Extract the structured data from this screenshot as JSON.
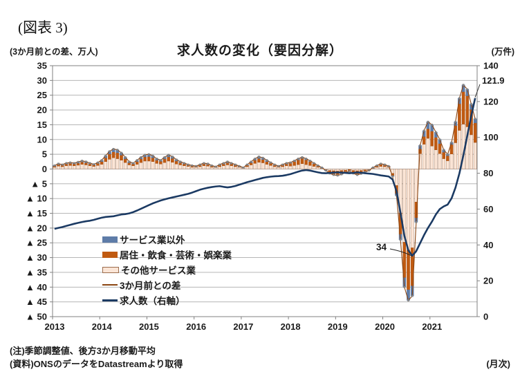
{
  "header": {
    "figure_label": "(図表 3)",
    "title": "求人数の変化（要因分解）",
    "left_axis_caption": "(3か月前との差、万人)",
    "right_axis_caption": "(万件)"
  },
  "footer": {
    "note1": "(注)季節調整値、後方3か月移動平均",
    "note2": "(資料)ONSのデータをDatastreamより取得",
    "frequency": "(月次)"
  },
  "chart_data": {
    "type": "combo: stacked monthly bars (left axis) + lines (left/right axis)",
    "title": "求人数の変化（要因分解）",
    "grid": "horizontal gridlines every 5 left-axis units",
    "legend_position": "inside plot, lower left",
    "years": [
      "2013",
      "2014",
      "2015",
      "2016",
      "2017",
      "2018",
      "2019",
      "2020",
      "2021"
    ],
    "left_axis": {
      "caption": "(3か月前との差、万人)",
      "min": -50,
      "max": 35,
      "step": 5,
      "tick_labels": [
        "35",
        "30",
        "25",
        "20",
        "15",
        "10",
        "5",
        "0",
        "▲ 5",
        "▲ 10",
        "▲ 15",
        "▲ 20",
        "▲ 25",
        "▲ 30",
        "▲ 35",
        "▲ 40",
        "▲ 45",
        "▲ 50"
      ]
    },
    "right_axis": {
      "caption": "(万件)",
      "min": 0,
      "max": 140,
      "step": 20,
      "tick_labels": [
        "140",
        "120",
        "100",
        "80",
        "60",
        "40",
        "20",
        "0"
      ]
    },
    "legend": [
      {
        "label": "サービス業以外",
        "type": "bar",
        "color": "#5E7CA8"
      },
      {
        "label": "居住・飲食・芸術・娯楽業",
        "type": "bar",
        "color": "#C05A11"
      },
      {
        "label": "その他サービス業",
        "type": "bar",
        "color": "#FBE5D6"
      },
      {
        "label": "3か月前との差",
        "type": "line",
        "color": "#8A4410"
      },
      {
        "label": "求人数（右軸）",
        "type": "line",
        "color": "#1B3A63"
      }
    ],
    "annotations": {
      "trough": {
        "text": "34",
        "series": "求人数（右軸）",
        "month": "2020-08"
      },
      "latest": {
        "text": "121.9",
        "series": "求人数（右軸）",
        "month": "2021-12"
      }
    },
    "months_start": "2013-01",
    "months_end": "2021-12",
    "series": {
      "non_services": [
        0.2,
        0.3,
        0.2,
        0.3,
        0.3,
        0.3,
        0.4,
        0.4,
        0.4,
        0.3,
        0.2,
        0.3,
        0.5,
        0.7,
        0.9,
        1.0,
        1.0,
        0.8,
        0.6,
        0.4,
        0.3,
        0.5,
        0.6,
        0.7,
        0.8,
        0.7,
        0.5,
        0.4,
        0.6,
        0.7,
        0.6,
        0.5,
        0.4,
        0.3,
        0.2,
        0.2,
        0.1,
        0.2,
        0.3,
        0.3,
        0.2,
        0.1,
        0.2,
        0.3,
        0.4,
        0.3,
        0.2,
        0.1,
        0.1,
        0.2,
        0.4,
        0.5,
        0.6,
        0.6,
        0.5,
        0.3,
        0.2,
        0.1,
        0.2,
        0.3,
        0.2,
        0.3,
        0.4,
        0.4,
        0.4,
        0.3,
        0.2,
        0.1,
        0.1,
        -0.1,
        -0.1,
        -0.2,
        -0.2,
        -0.2,
        -0.1,
        -0.1,
        -0.1,
        -0.2,
        -0.2,
        -0.1,
        0.0,
        0.1,
        0.1,
        0.2,
        0.2,
        0.1,
        -0.2,
        -0.7,
        -1.9,
        -3.2,
        -3.6,
        -3.4,
        -1.4,
        1.2,
        2.0,
        2.4,
        2.2,
        1.8,
        1.4,
        0.8,
        0.5,
        0.7,
        1.3,
        1.9,
        2.3,
        2.2,
        1.8,
        1.4
      ],
      "accommodation_food_arts": [
        0.4,
        0.5,
        0.5,
        0.6,
        0.7,
        0.6,
        0.7,
        0.8,
        0.7,
        0.6,
        0.5,
        0.7,
        0.9,
        1.3,
        1.8,
        2.0,
        2.0,
        1.7,
        1.2,
        0.7,
        0.6,
        0.9,
        1.2,
        1.4,
        1.5,
        1.3,
        1.1,
        0.9,
        1.2,
        1.4,
        1.3,
        1.0,
        0.7,
        0.6,
        0.4,
        0.4,
        0.3,
        0.5,
        0.6,
        0.5,
        0.4,
        0.2,
        0.5,
        0.6,
        0.7,
        0.6,
        0.5,
        0.3,
        0.1,
        0.5,
        0.7,
        1.1,
        1.3,
        1.1,
        0.9,
        0.7,
        0.5,
        0.3,
        0.5,
        0.6,
        1.0,
        1.3,
        1.6,
        1.8,
        1.6,
        1.3,
        0.9,
        0.5,
        0.2,
        -0.2,
        -0.9,
        -1.2,
        -1.3,
        -1.1,
        -0.7,
        -0.5,
        -0.9,
        -1.2,
        -0.9,
        -0.6,
        -0.3,
        0.2,
        0.5,
        0.7,
        0.5,
        0.3,
        -0.8,
        -2.7,
        -7.2,
        -12.0,
        -13.4,
        -12.9,
        -5.4,
        1.6,
        2.6,
        3.2,
        5.0,
        4.2,
        3.4,
        2.2,
        1.7,
        3.2,
        5.8,
        9.0,
        11.0,
        10.5,
        8.6,
        6.6
      ],
      "other_services": [
        0.6,
        1.0,
        0.8,
        1.1,
        1.2,
        1.1,
        1.3,
        1.6,
        1.4,
        1.1,
        0.9,
        1.2,
        1.6,
        2.5,
        3.3,
        3.8,
        3.5,
        3.0,
        2.2,
        1.4,
        1.1,
        1.6,
        2.2,
        2.7,
        2.7,
        2.5,
        1.9,
        1.7,
        2.2,
        2.7,
        2.3,
        1.7,
        1.4,
        1.1,
        0.9,
        0.6,
        0.6,
        0.8,
        1.1,
        1.0,
        0.6,
        0.5,
        0.8,
        1.1,
        1.4,
        1.1,
        0.8,
        0.6,
        0.3,
        0.8,
        1.4,
        1.9,
        2.3,
        2.1,
        1.6,
        1.2,
        0.8,
        0.6,
        0.8,
        1.1,
        1.0,
        1.2,
        1.5,
        1.8,
        1.5,
        1.2,
        0.9,
        0.6,
        0.2,
        -0.2,
        -0.5,
        -0.6,
        -0.7,
        -0.5,
        -0.4,
        -0.2,
        -0.5,
        -0.6,
        -0.5,
        -0.3,
        -0.2,
        0.2,
        0.6,
        0.9,
        0.8,
        0.6,
        -1.5,
        -5.6,
        -14.9,
        -24.8,
        -27.5,
        -26.7,
        -11.2,
        5.2,
        8.4,
        10.4,
        7.8,
        6.5,
        5.2,
        3.5,
        2.8,
        5.1,
        8.9,
        13.1,
        15.2,
        14.3,
        11.6,
        9.0
      ],
      "total_diff": [
        1.2,
        1.8,
        1.5,
        2.0,
        2.2,
        2.0,
        2.4,
        2.8,
        2.5,
        2.0,
        1.6,
        2.2,
        3.0,
        4.5,
        6.0,
        6.8,
        6.5,
        5.5,
        4.0,
        2.5,
        2.0,
        3.0,
        4.0,
        4.8,
        5.0,
        4.5,
        3.5,
        3.0,
        4.0,
        4.8,
        4.2,
        3.2,
        2.5,
        2.0,
        1.5,
        1.2,
        1.0,
        1.5,
        2.0,
        1.8,
        1.2,
        0.8,
        1.5,
        2.0,
        2.5,
        2.0,
        1.5,
        1.0,
        0.5,
        1.5,
        2.5,
        3.5,
        4.2,
        3.8,
        3.0,
        2.2,
        1.5,
        1.0,
        1.5,
        2.0,
        2.2,
        2.8,
        3.5,
        4.0,
        3.5,
        2.8,
        2.0,
        1.2,
        0.5,
        -0.5,
        -1.5,
        -2.0,
        -2.2,
        -1.8,
        -1.2,
        -0.8,
        -1.5,
        -2.0,
        -1.6,
        -1.0,
        -0.5,
        0.5,
        1.2,
        1.8,
        1.5,
        1.0,
        -2.5,
        -9.0,
        -24.0,
        -40.0,
        -44.5,
        -43.0,
        -18.0,
        8.0,
        13.0,
        16.0,
        15.0,
        12.5,
        10.0,
        6.5,
        5.0,
        9.0,
        16.0,
        24.0,
        28.5,
        27.0,
        22.0,
        17.0
      ],
      "job_openings_right_axis": [
        49.0,
        49.5,
        50.0,
        50.6,
        51.2,
        51.8,
        52.3,
        52.8,
        53.2,
        53.5,
        54.0,
        54.6,
        55.2,
        55.6,
        55.8,
        56.0,
        56.5,
        57.0,
        57.2,
        57.6,
        58.3,
        59.2,
        60.2,
        61.2,
        62.2,
        63.2,
        64.0,
        64.8,
        65.4,
        66.0,
        66.5,
        67.0,
        67.5,
        68.0,
        68.5,
        69.2,
        70.0,
        70.8,
        71.4,
        71.9,
        72.3,
        72.6,
        72.8,
        72.4,
        72.1,
        72.4,
        72.9,
        73.6,
        74.3,
        75.0,
        75.6,
        76.2,
        76.8,
        77.4,
        77.8,
        78.1,
        78.3,
        78.4,
        78.6,
        79.0,
        79.5,
        80.2,
        80.9,
        81.5,
        81.8,
        81.5,
        81.0,
        80.5,
        80.1,
        80.0,
        80.2,
        80.4,
        80.5,
        80.4,
        80.2,
        80.0,
        80.2,
        80.5,
        80.3,
        80.0,
        79.8,
        79.6,
        79.2,
        78.8,
        78.5,
        78.2,
        76.5,
        70.0,
        58.0,
        45.0,
        37.0,
        34.0,
        36.5,
        41.0,
        45.5,
        49.5,
        53.0,
        57.0,
        60.0,
        61.5,
        62.5,
        66.0,
        72.0,
        80.0,
        90.0,
        101.0,
        112.0,
        121.9
      ]
    }
  }
}
